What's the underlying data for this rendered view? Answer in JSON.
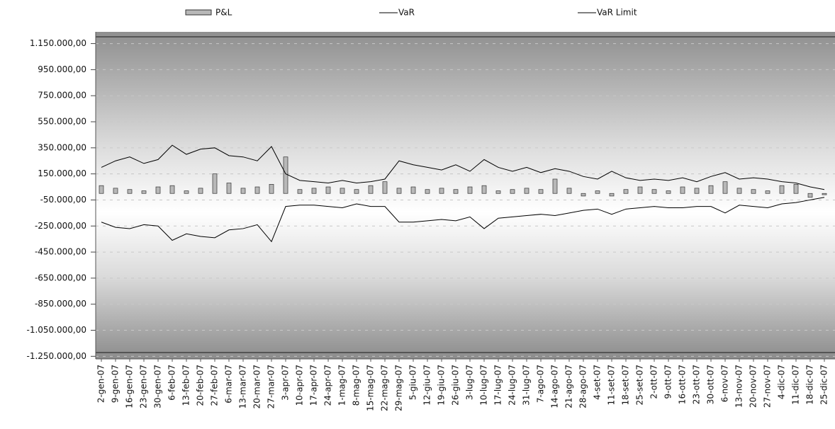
{
  "chart_data": {
    "type": "bar_line",
    "categories": [
      "2-gen-07",
      "9-gen-07",
      "16-gen-07",
      "23-gen-07",
      "30-gen-07",
      "6-feb-07",
      "13-feb-07",
      "20-feb-07",
      "27-feb-07",
      "6-mar-07",
      "13-mar-07",
      "20-mar-07",
      "27-mar-07",
      "3-apr-07",
      "10-apr-07",
      "17-apr-07",
      "24-apr-07",
      "1-mag-07",
      "8-mag-07",
      "15-mag-07",
      "22-mag-07",
      "29-mag-07",
      "5-giu-07",
      "12-giu-07",
      "19-giu-07",
      "26-giu-07",
      "3-lug-07",
      "10-lug-07",
      "17-lug-07",
      "24-lug-07",
      "31-lug-07",
      "7-ago-07",
      "14-ago-07",
      "21-ago-07",
      "28-ago-07",
      "4-set-07",
      "11-set-07",
      "18-set-07",
      "25-set-07",
      "2-ott-07",
      "9-ott-07",
      "16-ott-07",
      "23-ott-07",
      "30-ott-07",
      "6-nov-07",
      "13-nov-07",
      "20-nov-07",
      "27-nov-07",
      "4-dic-07",
      "11-dic-07",
      "18-dic-07",
      "25-dic-07"
    ],
    "series": [
      {
        "name": "P&L",
        "kind": "bar",
        "color": "#b8b8b8",
        "values": [
          60000,
          40000,
          30000,
          20000,
          50000,
          60000,
          20000,
          40000,
          150000,
          80000,
          40000,
          50000,
          70000,
          280000,
          30000,
          40000,
          50000,
          40000,
          30000,
          60000,
          90000,
          40000,
          50000,
          30000,
          40000,
          30000,
          50000,
          60000,
          20000,
          30000,
          40000,
          30000,
          110000,
          40000,
          -20000,
          20000,
          -20000,
          30000,
          50000,
          30000,
          20000,
          50000,
          40000,
          60000,
          90000,
          40000,
          30000,
          20000,
          60000,
          70000,
          -30000,
          -10000
        ]
      },
      {
        "name": "VaR",
        "kind": "line",
        "color": "#000000",
        "values": [
          200000,
          250000,
          280000,
          230000,
          260000,
          370000,
          300000,
          340000,
          350000,
          290000,
          280000,
          250000,
          360000,
          150000,
          100000,
          90000,
          80000,
          100000,
          80000,
          90000,
          110000,
          250000,
          220000,
          200000,
          180000,
          220000,
          170000,
          260000,
          200000,
          170000,
          200000,
          160000,
          190000,
          170000,
          130000,
          110000,
          170000,
          120000,
          100000,
          110000,
          100000,
          120000,
          90000,
          130000,
          160000,
          110000,
          120000,
          110000,
          90000,
          80000,
          50000,
          30000
        ]
      },
      {
        "name": "VaR Limit",
        "kind": "line",
        "color": "#000000",
        "values": [
          -220000,
          -260000,
          -270000,
          -240000,
          -250000,
          -360000,
          -310000,
          -330000,
          -340000,
          -280000,
          -270000,
          -240000,
          -370000,
          -100000,
          -90000,
          -90000,
          -100000,
          -110000,
          -80000,
          -100000,
          -100000,
          -220000,
          -220000,
          -210000,
          -200000,
          -210000,
          -180000,
          -270000,
          -190000,
          -180000,
          -170000,
          -160000,
          -170000,
          -150000,
          -130000,
          -120000,
          -160000,
          -120000,
          -110000,
          -100000,
          -110000,
          -110000,
          -100000,
          -100000,
          -150000,
          -90000,
          -100000,
          -110000,
          -80000,
          -70000,
          -50000,
          -30000
        ]
      }
    ],
    "ylim": [
      -1270000,
      1240000
    ],
    "yticks": [
      {
        "value": 1150000,
        "label": "1.150.000,00"
      },
      {
        "value": 950000,
        "label": "950.000,00"
      },
      {
        "value": 750000,
        "label": "750.000,00"
      },
      {
        "value": 550000,
        "label": "550.000,00"
      },
      {
        "value": 350000,
        "label": "350.000,00"
      },
      {
        "value": 150000,
        "label": "150.000,00"
      },
      {
        "value": -50000,
        "label": "-50.000,00"
      },
      {
        "value": -250000,
        "label": "-250.000,00"
      },
      {
        "value": -450000,
        "label": "-450.000,00"
      },
      {
        "value": -650000,
        "label": "-650.000,00"
      },
      {
        "value": -850000,
        "label": "-850.000,00"
      },
      {
        "value": -1050000,
        "label": "-1.050.000,00"
      },
      {
        "value": -1250000,
        "label": "-1.250.000,00"
      }
    ],
    "grid": true
  }
}
